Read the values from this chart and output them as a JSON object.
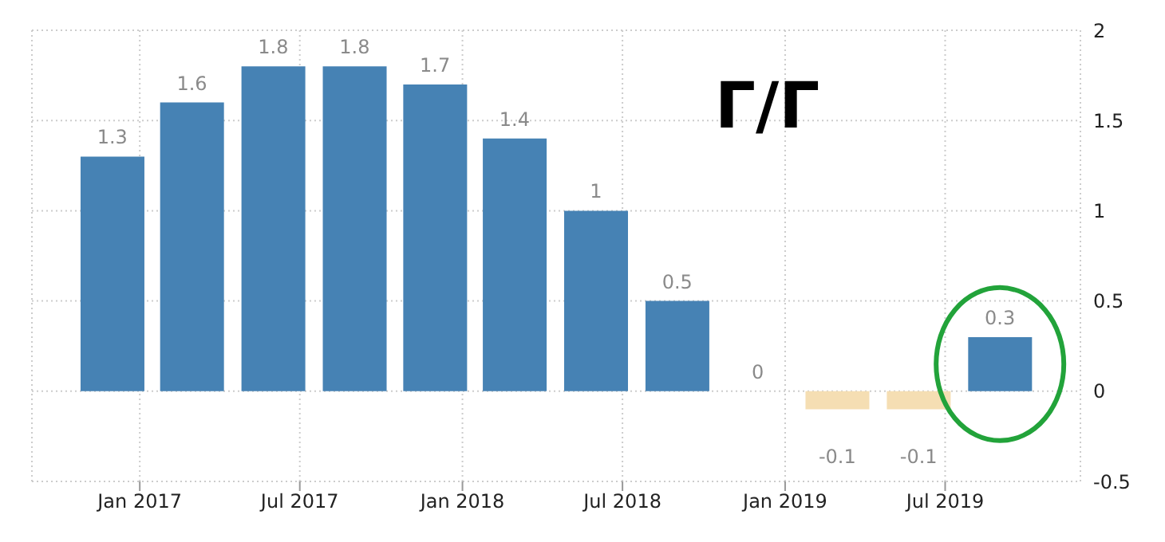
{
  "chart_data": {
    "type": "bar",
    "title": "Г/Г",
    "x": [
      "2016-12",
      "2017-03",
      "2017-06",
      "2017-09",
      "2017-12",
      "2018-03",
      "2018-06",
      "2018-09",
      "2018-12",
      "2019-03",
      "2019-06",
      "2019-09"
    ],
    "values": [
      1.3,
      1.6,
      1.8,
      1.8,
      1.7,
      1.4,
      1,
      0.5,
      0,
      -0.1,
      -0.1,
      0.3
    ],
    "colors": [
      "#4682b4",
      "#4682b4",
      "#4682b4",
      "#4682b4",
      "#4682b4",
      "#4682b4",
      "#4682b4",
      "#4682b4",
      "#4682b4",
      "#f5deb3",
      "#f5deb3",
      "#4682b4"
    ],
    "data_labels": true,
    "xlim": [
      "2016-09",
      "2019-12"
    ],
    "xticks": [
      {
        "value": "2017-01",
        "label": "Jan 2017"
      },
      {
        "value": "2017-07",
        "label": "Jul 2017"
      },
      {
        "value": "2018-01",
        "label": "Jan 2018"
      },
      {
        "value": "2018-07",
        "label": "Jul 2018"
      },
      {
        "value": "2019-01",
        "label": "Jan 2019"
      },
      {
        "value": "2019-07",
        "label": "Jul 2019"
      }
    ],
    "ylim": [
      -0.5,
      2
    ],
    "yticks": [
      -0.5,
      0,
      0.5,
      1,
      1.5,
      2
    ],
    "grid": true
  }
}
